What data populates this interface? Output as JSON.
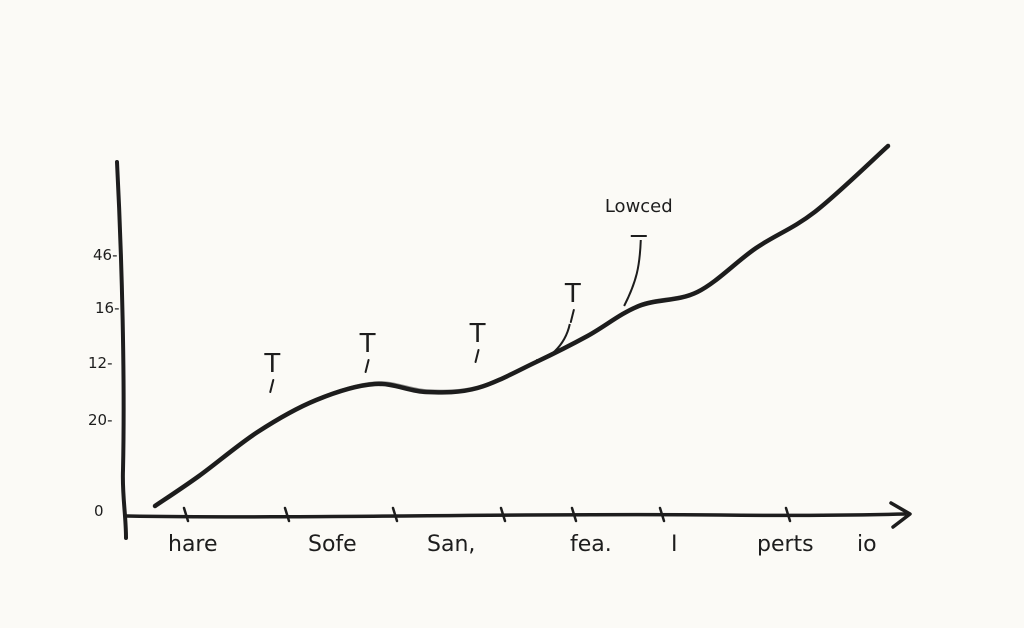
{
  "chart_data": {
    "type": "line",
    "title": "",
    "xlabel": "",
    "ylabel": "",
    "x_tick_labels": [
      "hare",
      "Sofe",
      "San,",
      "fea.",
      "I",
      "perts",
      "io"
    ],
    "y_tick_labels": [
      "0",
      "20-",
      "12-",
      "16-",
      "46-"
    ],
    "series": [
      {
        "values": [
          [
            0.0,
            0.05
          ],
          [
            0.06,
            0.2
          ],
          [
            0.14,
            0.42
          ],
          [
            0.22,
            0.58
          ],
          [
            0.3,
            0.66
          ],
          [
            0.37,
            0.62
          ],
          [
            0.44,
            0.64
          ],
          [
            0.52,
            0.77
          ],
          [
            0.59,
            0.9
          ],
          [
            0.66,
            1.05
          ],
          [
            0.74,
            1.12
          ],
          [
            0.82,
            1.34
          ],
          [
            0.9,
            1.52
          ],
          [
            1.0,
            1.85
          ]
        ]
      }
    ],
    "annotations": [
      {
        "text": "T",
        "x": 0.16,
        "y": 0.72
      },
      {
        "text": "T",
        "x": 0.29,
        "y": 0.82
      },
      {
        "text": "T",
        "x": 0.44,
        "y": 0.87
      },
      {
        "text": "T",
        "x": 0.57,
        "y": 1.07
      },
      {
        "text": "Lowced",
        "x": 0.66,
        "y": 1.4
      }
    ],
    "color": "#1d1d1d",
    "grid": false,
    "legend": "none"
  }
}
